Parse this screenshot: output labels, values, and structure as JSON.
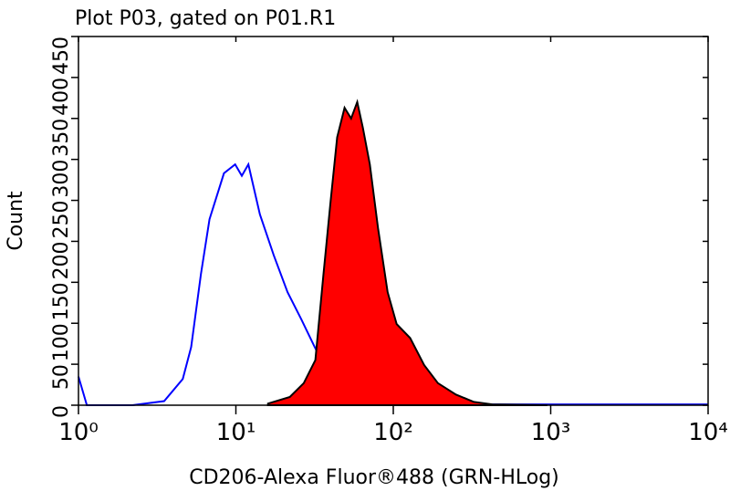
{
  "chart_data": {
    "type": "histogram-overlay",
    "title": "Plot P03, gated on P01.R1",
    "xlabel": "CD206-Alexa Fluor®488 (GRN-HLog)",
    "ylabel": "Count",
    "xscale": "log",
    "xlim": [
      1,
      10000
    ],
    "ylim": [
      0,
      450
    ],
    "xticks": [
      {
        "value": 1,
        "label": "10⁰"
      },
      {
        "value": 10,
        "label": "10¹"
      },
      {
        "value": 100,
        "label": "10²"
      },
      {
        "value": 1000,
        "label": "10³"
      },
      {
        "value": 10000,
        "label": "10⁴"
      }
    ],
    "yticks": [
      0,
      50,
      100,
      150,
      200,
      250,
      300,
      350,
      400,
      450
    ],
    "series": [
      {
        "color": "#0000ff",
        "fill": false,
        "x": [
          1,
          1.13,
          2.2,
          3.5,
          4.6,
          5.2,
          6.0,
          6.8,
          8.4,
          9.9,
          10.9,
          12.0,
          14.2,
          17.4,
          21.3,
          26,
          31.7,
          38.7,
          47.3,
          57.8,
          75.5,
          98.6,
          251,
          10000
        ],
        "values": [
          35,
          0,
          0,
          5,
          32,
          71,
          160,
          227,
          283,
          294,
          280,
          294,
          233,
          183,
          138,
          105,
          71,
          38,
          21,
          10,
          4,
          2,
          1,
          1
        ]
      },
      {
        "color": "#ff0000",
        "edgecolor": "#000000",
        "fill": true,
        "x": [
          16,
          22,
          27,
          32,
          36,
          40,
          44,
          49,
          54,
          59,
          64,
          71,
          80,
          92,
          105,
          128,
          157,
          192,
          250,
          325,
          425,
          950
        ],
        "values": [
          2,
          10,
          27,
          55,
          160,
          250,
          327,
          363,
          350,
          370,
          339,
          294,
          216,
          138,
          99,
          82,
          49,
          27,
          13,
          4,
          1,
          0
        ]
      }
    ]
  }
}
